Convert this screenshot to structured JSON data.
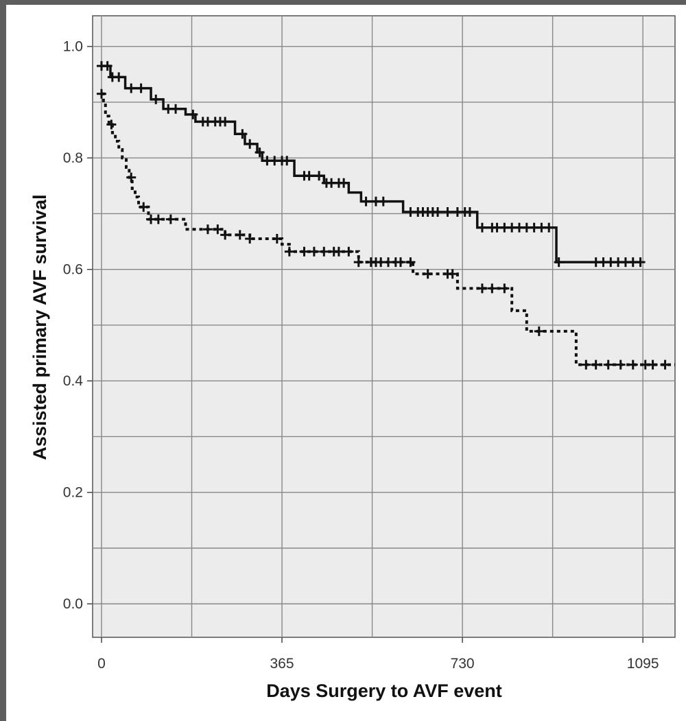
{
  "chart_data": {
    "type": "line",
    "subtype": "kaplan-meier",
    "title": "",
    "xlabel": "Days Surgery to AVF event",
    "ylabel": "Assisted primary AVF survival",
    "xlim": [
      -18,
      1160
    ],
    "ylim": [
      -0.06,
      1.055
    ],
    "xticks": [
      0,
      365,
      730,
      1095
    ],
    "xtick_labels": [
      "0",
      "365",
      "730",
      "1095"
    ],
    "yticks": [
      0.0,
      0.2,
      0.4,
      0.6,
      0.8,
      1.0
    ],
    "ytick_labels": [
      "0.0",
      "0.2",
      "0.4",
      "0.6",
      "0.8",
      "1.0"
    ],
    "x_gridlines": [
      0,
      182.5,
      365,
      547.5,
      730,
      912.5,
      1095
    ],
    "y_gridlines": [
      0.0,
      0.1,
      0.2,
      0.3,
      0.4,
      0.5,
      0.6,
      0.7,
      0.8,
      0.9,
      1.0
    ],
    "grid": true,
    "legend": "none",
    "colors": {
      "plot_background": "#ececec",
      "gridline": "#888888",
      "line": "#111111",
      "page_background": "#5e5e5e"
    },
    "series": [
      {
        "line_style": "solid",
        "steps": [
          [
            0,
            0.965
          ],
          [
            18,
            0.945
          ],
          [
            48,
            0.925
          ],
          [
            100,
            0.905
          ],
          [
            125,
            0.888
          ],
          [
            170,
            0.878
          ],
          [
            190,
            0.865
          ],
          [
            270,
            0.843
          ],
          [
            290,
            0.825
          ],
          [
            315,
            0.81
          ],
          [
            325,
            0.795
          ],
          [
            390,
            0.768
          ],
          [
            450,
            0.755
          ],
          [
            500,
            0.738
          ],
          [
            525,
            0.722
          ],
          [
            610,
            0.703
          ],
          [
            760,
            0.675
          ],
          [
            920,
            0.613
          ],
          [
            1090,
            0.613
          ]
        ],
        "censored_x": [
          0,
          12,
          22,
          35,
          60,
          80,
          110,
          135,
          150,
          185,
          205,
          215,
          230,
          240,
          250,
          285,
          300,
          320,
          335,
          350,
          365,
          375,
          410,
          420,
          440,
          455,
          465,
          480,
          490,
          535,
          555,
          570,
          625,
          640,
          650,
          660,
          670,
          680,
          700,
          720,
          735,
          745,
          770,
          790,
          800,
          815,
          830,
          845,
          860,
          875,
          890,
          905,
          925,
          1000,
          1015,
          1030,
          1045,
          1060,
          1075,
          1090
        ]
      },
      {
        "line_style": "dotted",
        "steps": [
          [
            0,
            0.915
          ],
          [
            4,
            0.9
          ],
          [
            8,
            0.875
          ],
          [
            15,
            0.86
          ],
          [
            22,
            0.845
          ],
          [
            28,
            0.83
          ],
          [
            35,
            0.815
          ],
          [
            42,
            0.8
          ],
          [
            50,
            0.783
          ],
          [
            56,
            0.765
          ],
          [
            62,
            0.745
          ],
          [
            68,
            0.73
          ],
          [
            75,
            0.712
          ],
          [
            95,
            0.69
          ],
          [
            170,
            0.672
          ],
          [
            250,
            0.662
          ],
          [
            300,
            0.655
          ],
          [
            365,
            0.645
          ],
          [
            380,
            0.632
          ],
          [
            520,
            0.613
          ],
          [
            630,
            0.592
          ],
          [
            720,
            0.566
          ],
          [
            830,
            0.526
          ],
          [
            860,
            0.489
          ],
          [
            960,
            0.429
          ],
          [
            1160,
            0.429
          ]
        ],
        "censored_x": [
          0,
          20,
          60,
          85,
          100,
          115,
          140,
          215,
          235,
          250,
          280,
          300,
          355,
          380,
          410,
          430,
          450,
          470,
          480,
          500,
          520,
          545,
          555,
          565,
          580,
          595,
          605,
          625,
          660,
          700,
          710,
          770,
          790,
          815,
          885,
          980,
          1000,
          1025,
          1050,
          1075,
          1100,
          1115,
          1140
        ]
      }
    ]
  }
}
